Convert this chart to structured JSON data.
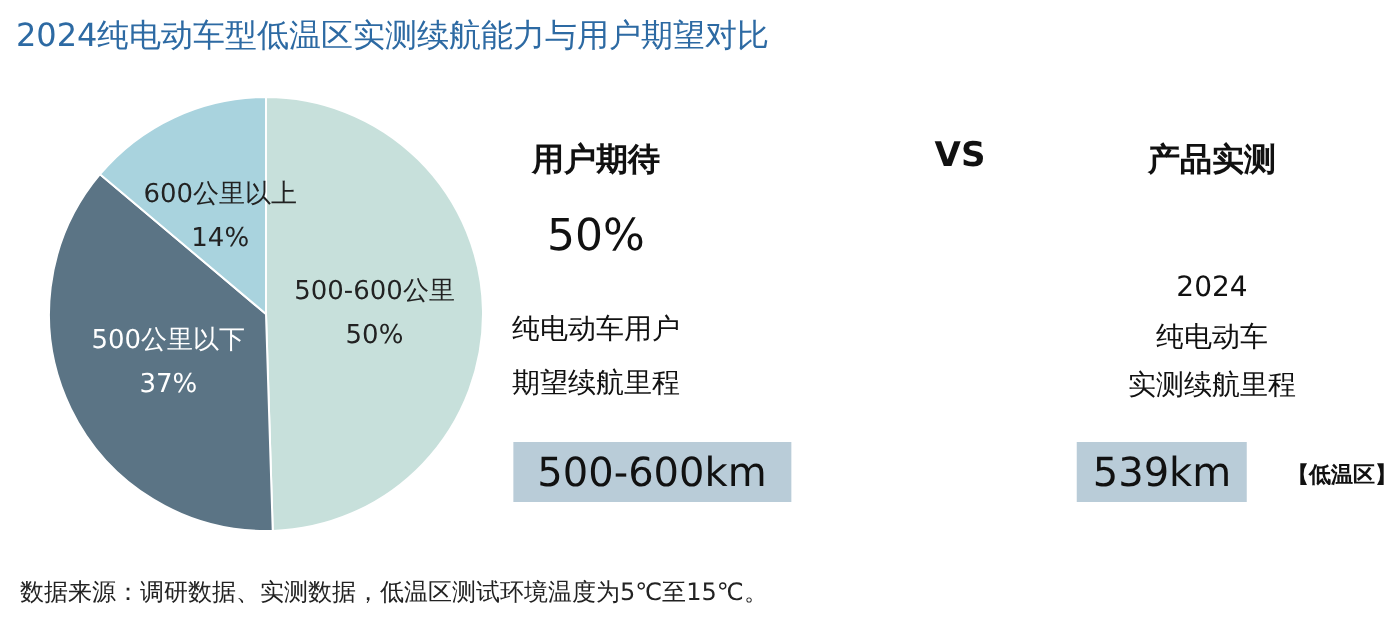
{
  "chart_data": [
    {
      "type": "pie",
      "title": "2024纯电动车型低温区实测续航能力与用户期望对比",
      "categories": [
        "500-600公里",
        "500公里以下",
        "600公里以上"
      ],
      "values": [
        50,
        37,
        14
      ],
      "colors": [
        "#c7e0db",
        "#5b7485",
        "#a9d3de"
      ],
      "value_labels": [
        "50%",
        "37%",
        "14%"
      ],
      "legend": false,
      "annotations": [
        "数据来源：调研数据、实测数据，低温区测试环境温度为5℃至15℃。"
      ]
    },
    {
      "type": "other",
      "annotations": [
        "用户期待",
        "50%",
        "纯电动车用户",
        "期望续航里程",
        "500-600km",
        "VS",
        "产品实测",
        "2024",
        "纯电动车",
        "实测续航里程",
        "539km",
        "【低温区】"
      ]
    }
  ]
}
